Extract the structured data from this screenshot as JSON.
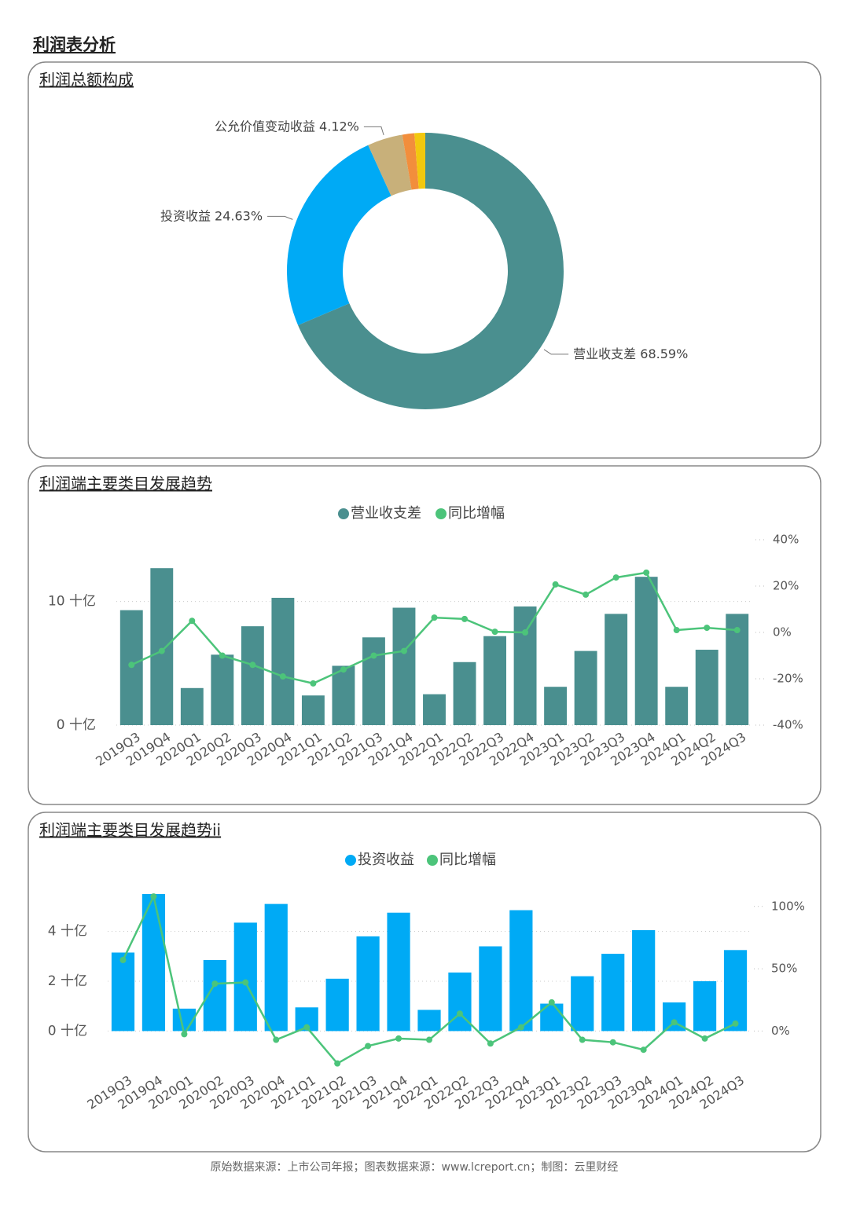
{
  "title": "利润表分析",
  "footer": "原始数据来源：上市公司年报；图表数据来源：www.lcreport.cn；制图：云里财经",
  "chart_data": [
    {
      "type": "donut",
      "title": "利润总额构成",
      "categories": [
        "营业收支差",
        "投资收益",
        "公允价值变动收益",
        null,
        null
      ],
      "values": [
        68.59,
        24.63,
        4.12,
        1.4,
        1.26
      ],
      "value_labels": [
        "68.59%",
        "24.63%",
        "4.12%",
        null,
        null
      ],
      "colors": [
        "#4a8f8f",
        "#00aaf5",
        "#c8b07a",
        "#f28e3c",
        "#f2c80f"
      ]
    },
    {
      "type": "bar",
      "title": "利润端主要类目发展趋势",
      "categories": [
        "2019Q3",
        "2019Q4",
        "2020Q1",
        "2020Q2",
        "2020Q3",
        "2020Q4",
        "2021Q1",
        "2021Q2",
        "2021Q3",
        "2021Q4",
        "2022Q1",
        "2022Q2",
        "2022Q3",
        "2022Q4",
        "2023Q1",
        "2023Q2",
        "2023Q3",
        "2023Q4",
        "2024Q1",
        "2024Q2",
        "2024Q3"
      ],
      "series": [
        {
          "name": "营业收支差",
          "color": "#4a8f8f",
          "values": [
            9.3,
            12.7,
            3.0,
            5.7,
            8.0,
            10.3,
            2.4,
            4.8,
            7.1,
            9.5,
            2.5,
            5.1,
            7.2,
            9.6,
            3.1,
            6.0,
            9.0,
            12.0,
            3.1,
            6.1,
            9.0
          ]
        },
        {
          "name": "同比增幅",
          "color": "#4cc47a",
          "type": "line",
          "axis": "y2",
          "values": [
            -14,
            -8,
            5,
            -10,
            -14,
            -19,
            -22,
            -16,
            -10,
            -8,
            6.4,
            5.8,
            0.3,
            0,
            20.7,
            16.3,
            23.7,
            25.8,
            1,
            2,
            1
          ]
        }
      ],
      "ylim": [
        0,
        15
      ],
      "yticks": [
        {
          "value": 0,
          "label": "0 十亿"
        },
        {
          "value": 10,
          "label": "10 十亿"
        }
      ],
      "y2lim": [
        -40,
        40
      ],
      "y2ticks": [
        {
          "value": -40,
          "label": "-40%"
        },
        {
          "value": -20,
          "label": "-20%"
        },
        {
          "value": 0,
          "label": "0%"
        },
        {
          "value": 20,
          "label": "20%"
        },
        {
          "value": 40,
          "label": "40%"
        }
      ],
      "grid": true,
      "legend": "top"
    },
    {
      "type": "bar",
      "title": "利润端主要类目发展趋势ii",
      "categories": [
        "2019Q3",
        "2019Q4",
        "2020Q1",
        "2020Q2",
        "2020Q3",
        "2020Q4",
        "2021Q1",
        "2021Q2",
        "2021Q3",
        "2021Q4",
        "2022Q1",
        "2022Q2",
        "2022Q3",
        "2022Q4",
        "2023Q1",
        "2023Q2",
        "2023Q3",
        "2023Q4",
        "2024Q1",
        "2024Q2",
        "2024Q3"
      ],
      "series": [
        {
          "name": "投资收益",
          "color": "#00aaf5",
          "values": [
            3.15,
            5.5,
            0.9,
            2.85,
            4.35,
            5.1,
            0.95,
            2.1,
            3.8,
            4.75,
            0.85,
            2.35,
            3.4,
            4.85,
            1.1,
            2.2,
            3.1,
            4.05,
            1.15,
            2.0,
            3.25
          ]
        },
        {
          "name": "同比增幅",
          "color": "#4cc47a",
          "type": "line",
          "axis": "y2",
          "values": [
            57,
            108,
            -2.5,
            38,
            39,
            -7,
            3,
            -26,
            -12,
            -6,
            -7,
            14,
            -10,
            3,
            23,
            -7,
            -9,
            -15,
            7,
            -6,
            6
          ]
        }
      ],
      "ylim": [
        -1.5,
        5.75
      ],
      "yticks": [
        {
          "value": 0,
          "label": "0 十亿"
        },
        {
          "value": 2,
          "label": "2 十亿"
        },
        {
          "value": 4,
          "label": "4 十亿"
        }
      ],
      "y2lim": [
        -30,
        115
      ],
      "y2ticks": [
        {
          "value": 0,
          "label": "0%"
        },
        {
          "value": 50,
          "label": "50%"
        },
        {
          "value": 100,
          "label": "100%"
        }
      ],
      "grid": true,
      "legend": "top"
    }
  ]
}
